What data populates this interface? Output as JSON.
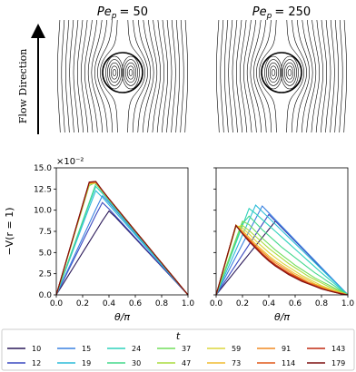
{
  "top_panels": [
    {
      "symbol": "Pe",
      "subscript": "p",
      "rest": "= 50"
    },
    {
      "symbol": "Pe",
      "subscript": "p",
      "rest": "= 250"
    }
  ],
  "flow_label": "Flow Direction",
  "chart_data": [
    {
      "type": "line",
      "x": [
        0,
        0.05,
        0.1,
        0.15,
        0.2,
        0.25,
        0.3,
        0.35,
        0.4,
        0.45,
        0.5,
        0.55,
        0.6,
        0.65,
        0.7,
        0.75,
        0.8,
        0.85,
        0.9,
        0.95,
        1
      ],
      "xlim": [
        0,
        1
      ],
      "xticks": [
        {
          "value": 0,
          "label": "0.0"
        },
        0.2,
        0.4,
        0.6,
        0.8,
        {
          "value": 1,
          "label": "1.0"
        }
      ],
      "ylim": [
        0,
        15
      ],
      "yticks": [
        {
          "value": 0,
          "label": "0.0"
        },
        2.5,
        {
          "value": 5,
          "label": "5.0"
        },
        7.5,
        {
          "value": 10,
          "label": "10.0"
        },
        12.5,
        {
          "value": 15,
          "label": "15.0"
        }
      ],
      "y_offset_label": "×10⁻²",
      "x_label": "θ/π",
      "y_label": "−V(r = 1)",
      "legend_title": "t",
      "series": [
        {
          "name": "10",
          "color": "#2a1858",
          "values": [
            0,
            1.25,
            2.5,
            3.75,
            5.0,
            6.25,
            7.5,
            8.75,
            9.9,
            9.17,
            8.33,
            7.5,
            6.67,
            5.83,
            5.0,
            4.17,
            3.33,
            2.5,
            1.67,
            0.83,
            0
          ]
        },
        {
          "name": "12",
          "color": "#3a48c0",
          "values": [
            0,
            1.57,
            3.14,
            4.71,
            6.29,
            7.86,
            9.43,
            10.9,
            10.15,
            9.31,
            8.46,
            7.62,
            6.77,
            5.92,
            5.08,
            4.23,
            3.38,
            2.54,
            1.69,
            0.85,
            0
          ]
        },
        {
          "name": "15",
          "color": "#3a80e0",
          "values": [
            0,
            1.69,
            3.37,
            5.06,
            6.74,
            8.43,
            10.11,
            11.7,
            10.89,
            9.98,
            9.08,
            8.17,
            7.26,
            6.35,
            5.45,
            4.54,
            3.63,
            2.72,
            1.82,
            0.91,
            0
          ]
        },
        {
          "name": "19",
          "color": "#2cbcd8",
          "values": [
            0,
            2.07,
            4.13,
            6.2,
            8.27,
            10.33,
            12.3,
            11.51,
            10.63,
            9.74,
            8.86,
            7.97,
            7.09,
            6.2,
            5.31,
            4.43,
            3.54,
            2.66,
            1.77,
            0.89,
            0
          ]
        },
        {
          "name": "24",
          "color": "#2ed2bc",
          "values": [
            0,
            2.15,
            4.3,
            6.45,
            8.6,
            10.75,
            12.8,
            11.98,
            11.06,
            10.14,
            9.21,
            8.29,
            7.37,
            6.45,
            5.53,
            4.61,
            3.69,
            2.76,
            1.84,
            0.92,
            0
          ]
        },
        {
          "name": "30",
          "color": "#44d88c",
          "values": [
            0,
            2.18,
            4.37,
            6.55,
            8.73,
            10.92,
            13.1,
            12.16,
            11.23,
            10.29,
            9.36,
            8.42,
            7.49,
            6.55,
            5.61,
            4.68,
            3.74,
            2.81,
            1.87,
            0.94,
            0
          ]
        },
        {
          "name": "37",
          "color": "#72de5c",
          "values": [
            0,
            2.58,
            5.16,
            7.74,
            10.32,
            12.9,
            13.3,
            12.26,
            11.31,
            10.37,
            9.43,
            8.49,
            7.54,
            6.6,
            5.66,
            4.71,
            3.77,
            2.83,
            1.89,
            0.94,
            0
          ]
        },
        {
          "name": "47",
          "color": "#aadc3e",
          "values": [
            0,
            2.62,
            5.24,
            7.86,
            10.48,
            13.1,
            13.2,
            12.26,
            11.31,
            10.37,
            9.43,
            8.49,
            7.54,
            6.6,
            5.66,
            4.71,
            3.77,
            2.83,
            1.89,
            0.94,
            0
          ]
        },
        {
          "name": "59",
          "color": "#dcd63c",
          "values": [
            0,
            2.62,
            5.24,
            7.86,
            10.48,
            13.1,
            13.2,
            12.26,
            11.31,
            10.37,
            9.43,
            8.49,
            7.54,
            6.6,
            5.66,
            4.71,
            3.77,
            2.83,
            1.89,
            0.94,
            0
          ]
        },
        {
          "name": "73",
          "color": "#f0bc30",
          "values": [
            0,
            2.63,
            5.26,
            7.89,
            10.52,
            13.15,
            13.25,
            12.28,
            11.32,
            10.38,
            9.43,
            8.49,
            7.54,
            6.6,
            5.66,
            4.71,
            3.77,
            2.83,
            1.89,
            0.94,
            0
          ]
        },
        {
          "name": "91",
          "color": "#f08a22",
          "values": [
            0,
            2.64,
            5.28,
            7.92,
            10.56,
            13.2,
            13.3,
            12.3,
            11.33,
            10.38,
            9.43,
            8.49,
            7.54,
            6.6,
            5.66,
            4.71,
            3.77,
            2.83,
            1.89,
            0.94,
            0
          ]
        },
        {
          "name": "114",
          "color": "#e05818",
          "values": [
            0,
            2.65,
            5.3,
            7.95,
            10.6,
            13.25,
            13.35,
            12.32,
            11.34,
            10.39,
            9.44,
            8.49,
            7.54,
            6.6,
            5.66,
            4.71,
            3.77,
            2.83,
            1.89,
            0.94,
            0
          ]
        },
        {
          "name": "143",
          "color": "#c02a10",
          "values": [
            0,
            2.66,
            5.32,
            7.98,
            10.64,
            13.3,
            13.38,
            12.33,
            11.35,
            10.39,
            9.44,
            8.49,
            7.54,
            6.6,
            5.66,
            4.71,
            3.77,
            2.83,
            1.89,
            0.94,
            0
          ]
        },
        {
          "name": "179",
          "color": "#7e1010",
          "values": [
            0,
            2.67,
            5.34,
            8.0,
            10.67,
            13.33,
            13.4,
            12.34,
            11.35,
            10.4,
            9.44,
            8.49,
            7.54,
            6.6,
            5.66,
            4.71,
            3.77,
            2.83,
            1.89,
            0.94,
            0
          ]
        }
      ]
    },
    {
      "type": "line",
      "x": [
        0,
        0.05,
        0.1,
        0.15,
        0.2,
        0.25,
        0.3,
        0.35,
        0.4,
        0.45,
        0.5,
        0.55,
        0.6,
        0.65,
        0.7,
        0.75,
        0.8,
        0.85,
        0.9,
        0.95,
        1
      ],
      "xlim": [
        0,
        1
      ],
      "xticks": [
        {
          "value": 0,
          "label": "0.0"
        },
        0.2,
        0.4,
        0.6,
        0.8,
        {
          "value": 1,
          "label": "1.0"
        }
      ],
      "ylim": [
        0,
        15
      ],
      "yticks": [
        0,
        2.5,
        5,
        7.5,
        10,
        12.5,
        15
      ],
      "x_label": "θ/π",
      "series": [
        {
          "color": "#2a1858",
          "values": [
            0,
            0.97,
            1.93,
            2.9,
            3.87,
            4.83,
            5.8,
            6.77,
            7.73,
            8.7,
            7.91,
            7.12,
            6.33,
            5.54,
            4.75,
            3.95,
            3.16,
            2.37,
            1.58,
            0.79,
            0
          ]
        },
        {
          "color": "#3a48c0",
          "values": [
            0,
            1.19,
            2.38,
            3.56,
            4.75,
            5.94,
            7.13,
            8.31,
            9.5,
            8.71,
            7.92,
            7.13,
            6.33,
            5.54,
            4.75,
            3.96,
            3.17,
            2.38,
            1.58,
            0.79,
            0
          ]
        },
        {
          "color": "#3a80e0",
          "values": [
            0,
            1.5,
            3.0,
            4.5,
            6.0,
            7.5,
            9.0,
            10.5,
            9.69,
            8.88,
            8.08,
            7.27,
            6.46,
            5.65,
            4.85,
            4.04,
            3.23,
            2.42,
            1.62,
            0.81,
            0
          ]
        },
        {
          "color": "#2cbcd8",
          "values": [
            0,
            1.77,
            3.53,
            5.3,
            7.07,
            8.83,
            10.6,
            9.84,
            9.09,
            8.33,
            7.57,
            6.81,
            6.06,
            5.3,
            4.54,
            3.79,
            3.03,
            2.27,
            1.51,
            0.76,
            0
          ]
        },
        {
          "color": "#2ed2bc",
          "values": [
            0,
            2.04,
            4.08,
            6.12,
            8.16,
            10.2,
            9.6,
            8.9,
            8.2,
            7.5,
            6.8,
            6.1,
            5.4,
            4.7,
            4.0,
            3.3,
            2.6,
            1.95,
            1.3,
            0.65,
            0
          ]
        },
        {
          "color": "#44d88c",
          "values": [
            0,
            2.1,
            4.2,
            6.3,
            8.4,
            9.3,
            8.5,
            7.7,
            7.0,
            6.3,
            5.6,
            5.0,
            4.4,
            3.8,
            3.2,
            2.6,
            2.1,
            1.55,
            1.05,
            0.5,
            0
          ]
        },
        {
          "color": "#72de5c",
          "values": [
            0,
            2.2,
            4.4,
            6.6,
            8.7,
            8.3,
            7.5,
            6.7,
            6.0,
            5.3,
            4.7,
            4.1,
            3.5,
            3.0,
            2.5,
            2.0,
            1.6,
            1.2,
            0.8,
            0.4,
            0
          ]
        },
        {
          "color": "#aadc3e",
          "values": [
            0,
            2.6,
            5.3,
            8.0,
            8.2,
            7.6,
            6.9,
            6.2,
            5.5,
            4.9,
            4.3,
            3.7,
            3.2,
            2.7,
            2.2,
            1.8,
            1.4,
            1.0,
            0.65,
            0.3,
            0
          ]
        },
        {
          "color": "#dcd63c",
          "values": [
            0,
            2.7,
            5.5,
            8.2,
            7.9,
            7.2,
            6.4,
            5.7,
            5.0,
            4.4,
            3.8,
            3.3,
            2.8,
            2.3,
            1.9,
            1.5,
            1.1,
            0.8,
            0.5,
            0.25,
            0
          ]
        },
        {
          "color": "#f0bc30",
          "values": [
            0,
            2.75,
            5.5,
            8.25,
            7.6,
            6.8,
            6.0,
            5.3,
            4.6,
            4.0,
            3.5,
            3.0,
            2.5,
            2.1,
            1.7,
            1.3,
            1.0,
            0.7,
            0.45,
            0.2,
            0
          ]
        },
        {
          "color": "#f08a22",
          "values": [
            0,
            2.75,
            5.5,
            8.2,
            7.4,
            6.6,
            5.8,
            5.1,
            4.4,
            3.8,
            3.3,
            2.8,
            2.3,
            1.9,
            1.5,
            1.2,
            0.9,
            0.6,
            0.4,
            0.2,
            0
          ]
        },
        {
          "color": "#e05818",
          "values": [
            0,
            2.75,
            5.5,
            8.2,
            7.3,
            6.5,
            5.7,
            4.9,
            4.2,
            3.6,
            3.1,
            2.6,
            2.2,
            1.8,
            1.4,
            1.1,
            0.8,
            0.55,
            0.35,
            0.15,
            0
          ]
        },
        {
          "color": "#c02a10",
          "values": [
            0,
            2.75,
            5.5,
            8.2,
            7.25,
            6.4,
            5.6,
            4.8,
            4.1,
            3.5,
            3.0,
            2.5,
            2.1,
            1.7,
            1.35,
            1.05,
            0.75,
            0.5,
            0.3,
            0.15,
            0
          ]
        },
        {
          "color": "#7e1010",
          "values": [
            0,
            2.75,
            5.5,
            8.2,
            7.2,
            6.3,
            5.5,
            4.7,
            4.0,
            3.4,
            2.9,
            2.4,
            2.0,
            1.6,
            1.3,
            1.0,
            0.7,
            0.5,
            0.3,
            0.1,
            0
          ]
        }
      ]
    }
  ]
}
